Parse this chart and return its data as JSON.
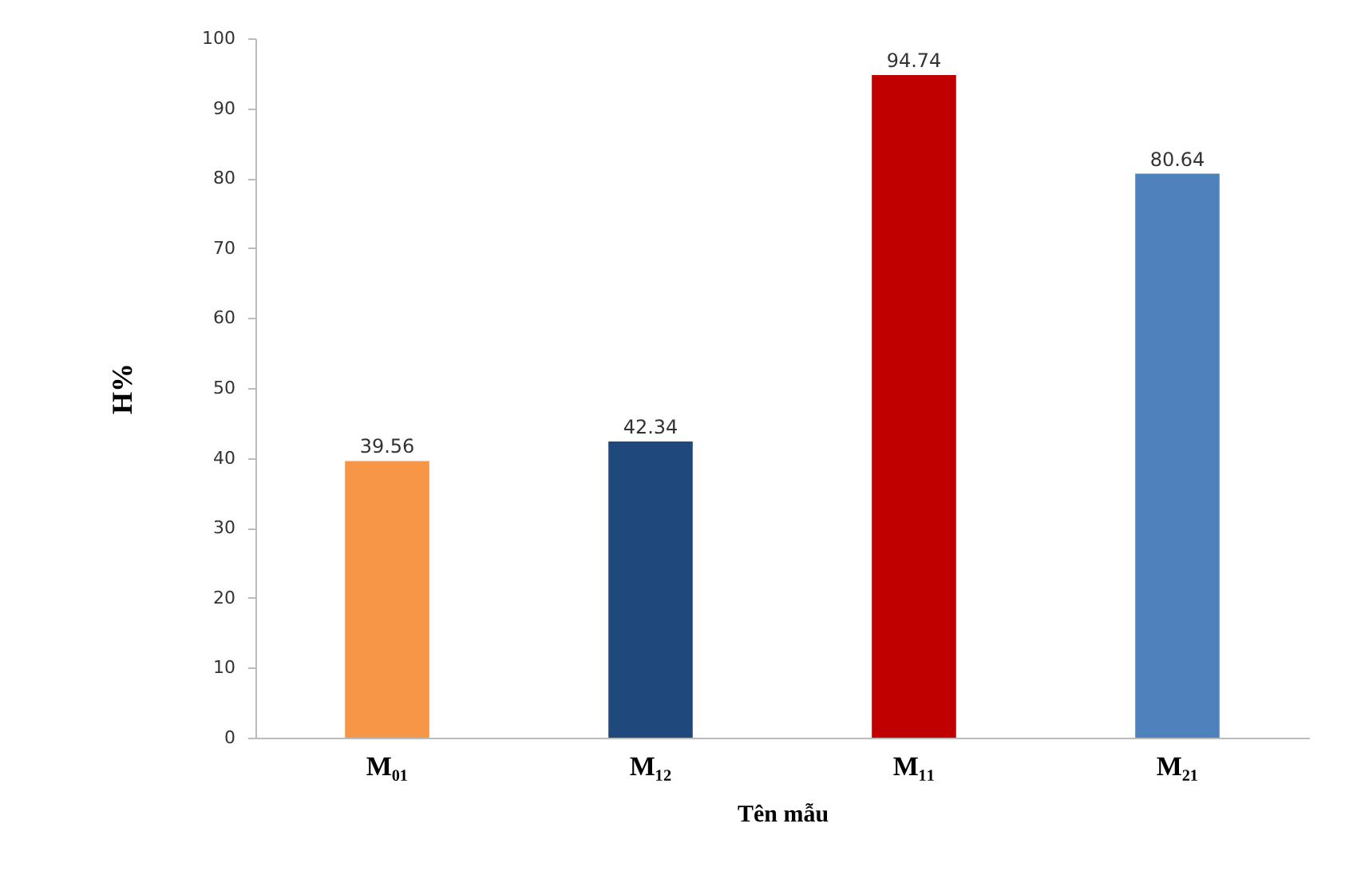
{
  "chart_data": {
    "type": "bar",
    "xlabel": "Tên mẫu",
    "ylabel": "H%",
    "categories": [
      "M₀₁",
      "M₁₂",
      "M₁₁",
      "M₂₁"
    ],
    "values": [
      39.56,
      42.34,
      94.74,
      80.64
    ],
    "colors": [
      "#f79646",
      "#1f497d",
      "#c00000",
      "#4f81bd"
    ],
    "ylim": [
      0,
      100
    ],
    "yticks": [
      0,
      10,
      20,
      30,
      40,
      50,
      60,
      70,
      80,
      90,
      100
    ],
    "grid": false,
    "data_labels": true
  }
}
